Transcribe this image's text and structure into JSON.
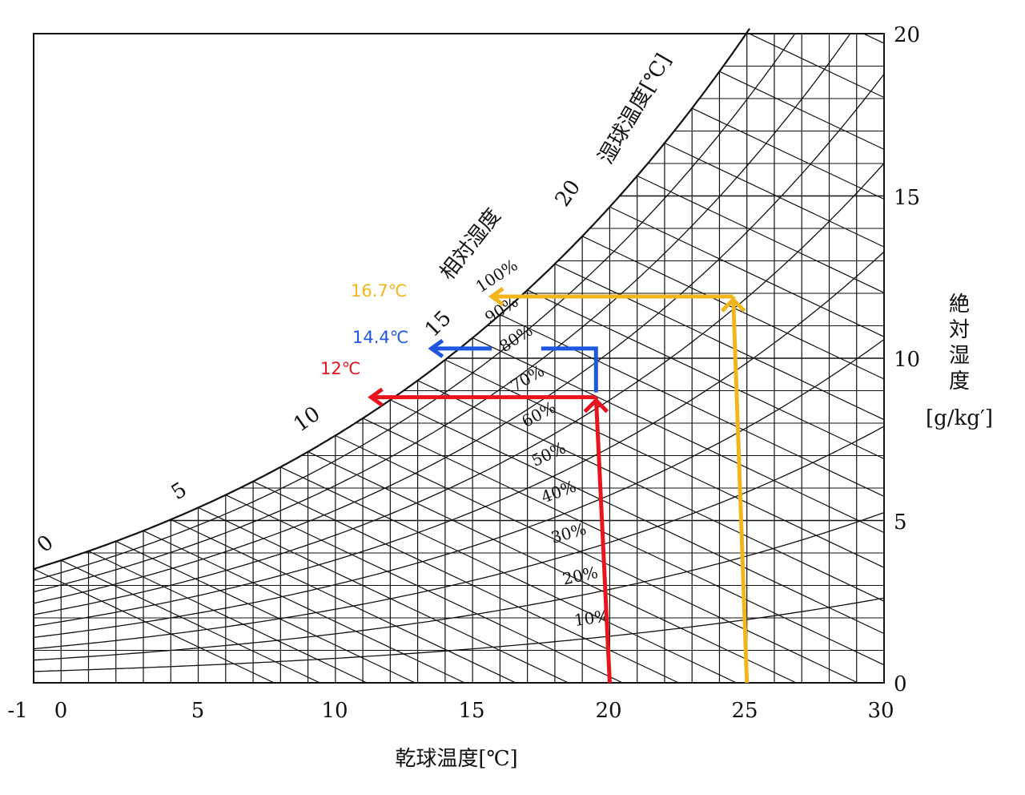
{
  "chart_data": {
    "type": "psychrometric",
    "x_axis": {
      "label": "乾球温度[℃]",
      "range": [
        -1,
        30
      ],
      "ticks": [
        "-1",
        "0",
        "5",
        "10",
        "15",
        "20",
        "25",
        "30"
      ]
    },
    "y_axis": {
      "label_chars": [
        "絶",
        "対",
        "湿",
        "度"
      ],
      "unit": "[g/kg′]",
      "range": [
        0,
        20
      ],
      "ticks": [
        "0",
        "5",
        "10",
        "15",
        "20"
      ],
      "side": "right"
    },
    "saturation_curve_labels": [
      "0",
      "5",
      "10",
      "15",
      "20"
    ],
    "wet_bulb_label": "湿球温度[℃]",
    "relative_humidity_label": "相対湿度",
    "relative_humidity_curves": [
      "100%",
      "90%",
      "80%",
      "70%",
      "60%",
      "50%",
      "40%",
      "30%",
      "20%",
      "10%"
    ],
    "annotations": [
      {
        "label": "12℃",
        "color": "#e8141e",
        "start_db": 20,
        "rh_point_db": 19.5,
        "abs_humidity": 8.8,
        "end_db": 11.3
      },
      {
        "label": "14.4℃",
        "color": "#1f56e0",
        "start_db": 19.5,
        "abs_humidity": 10.3,
        "end_db": 13.5
      },
      {
        "label": "16.7℃",
        "color": "#f2b61c",
        "start_db": 25,
        "rh_point_db": 24.5,
        "abs_humidity": 11.9,
        "end_db": 15.7
      }
    ]
  }
}
